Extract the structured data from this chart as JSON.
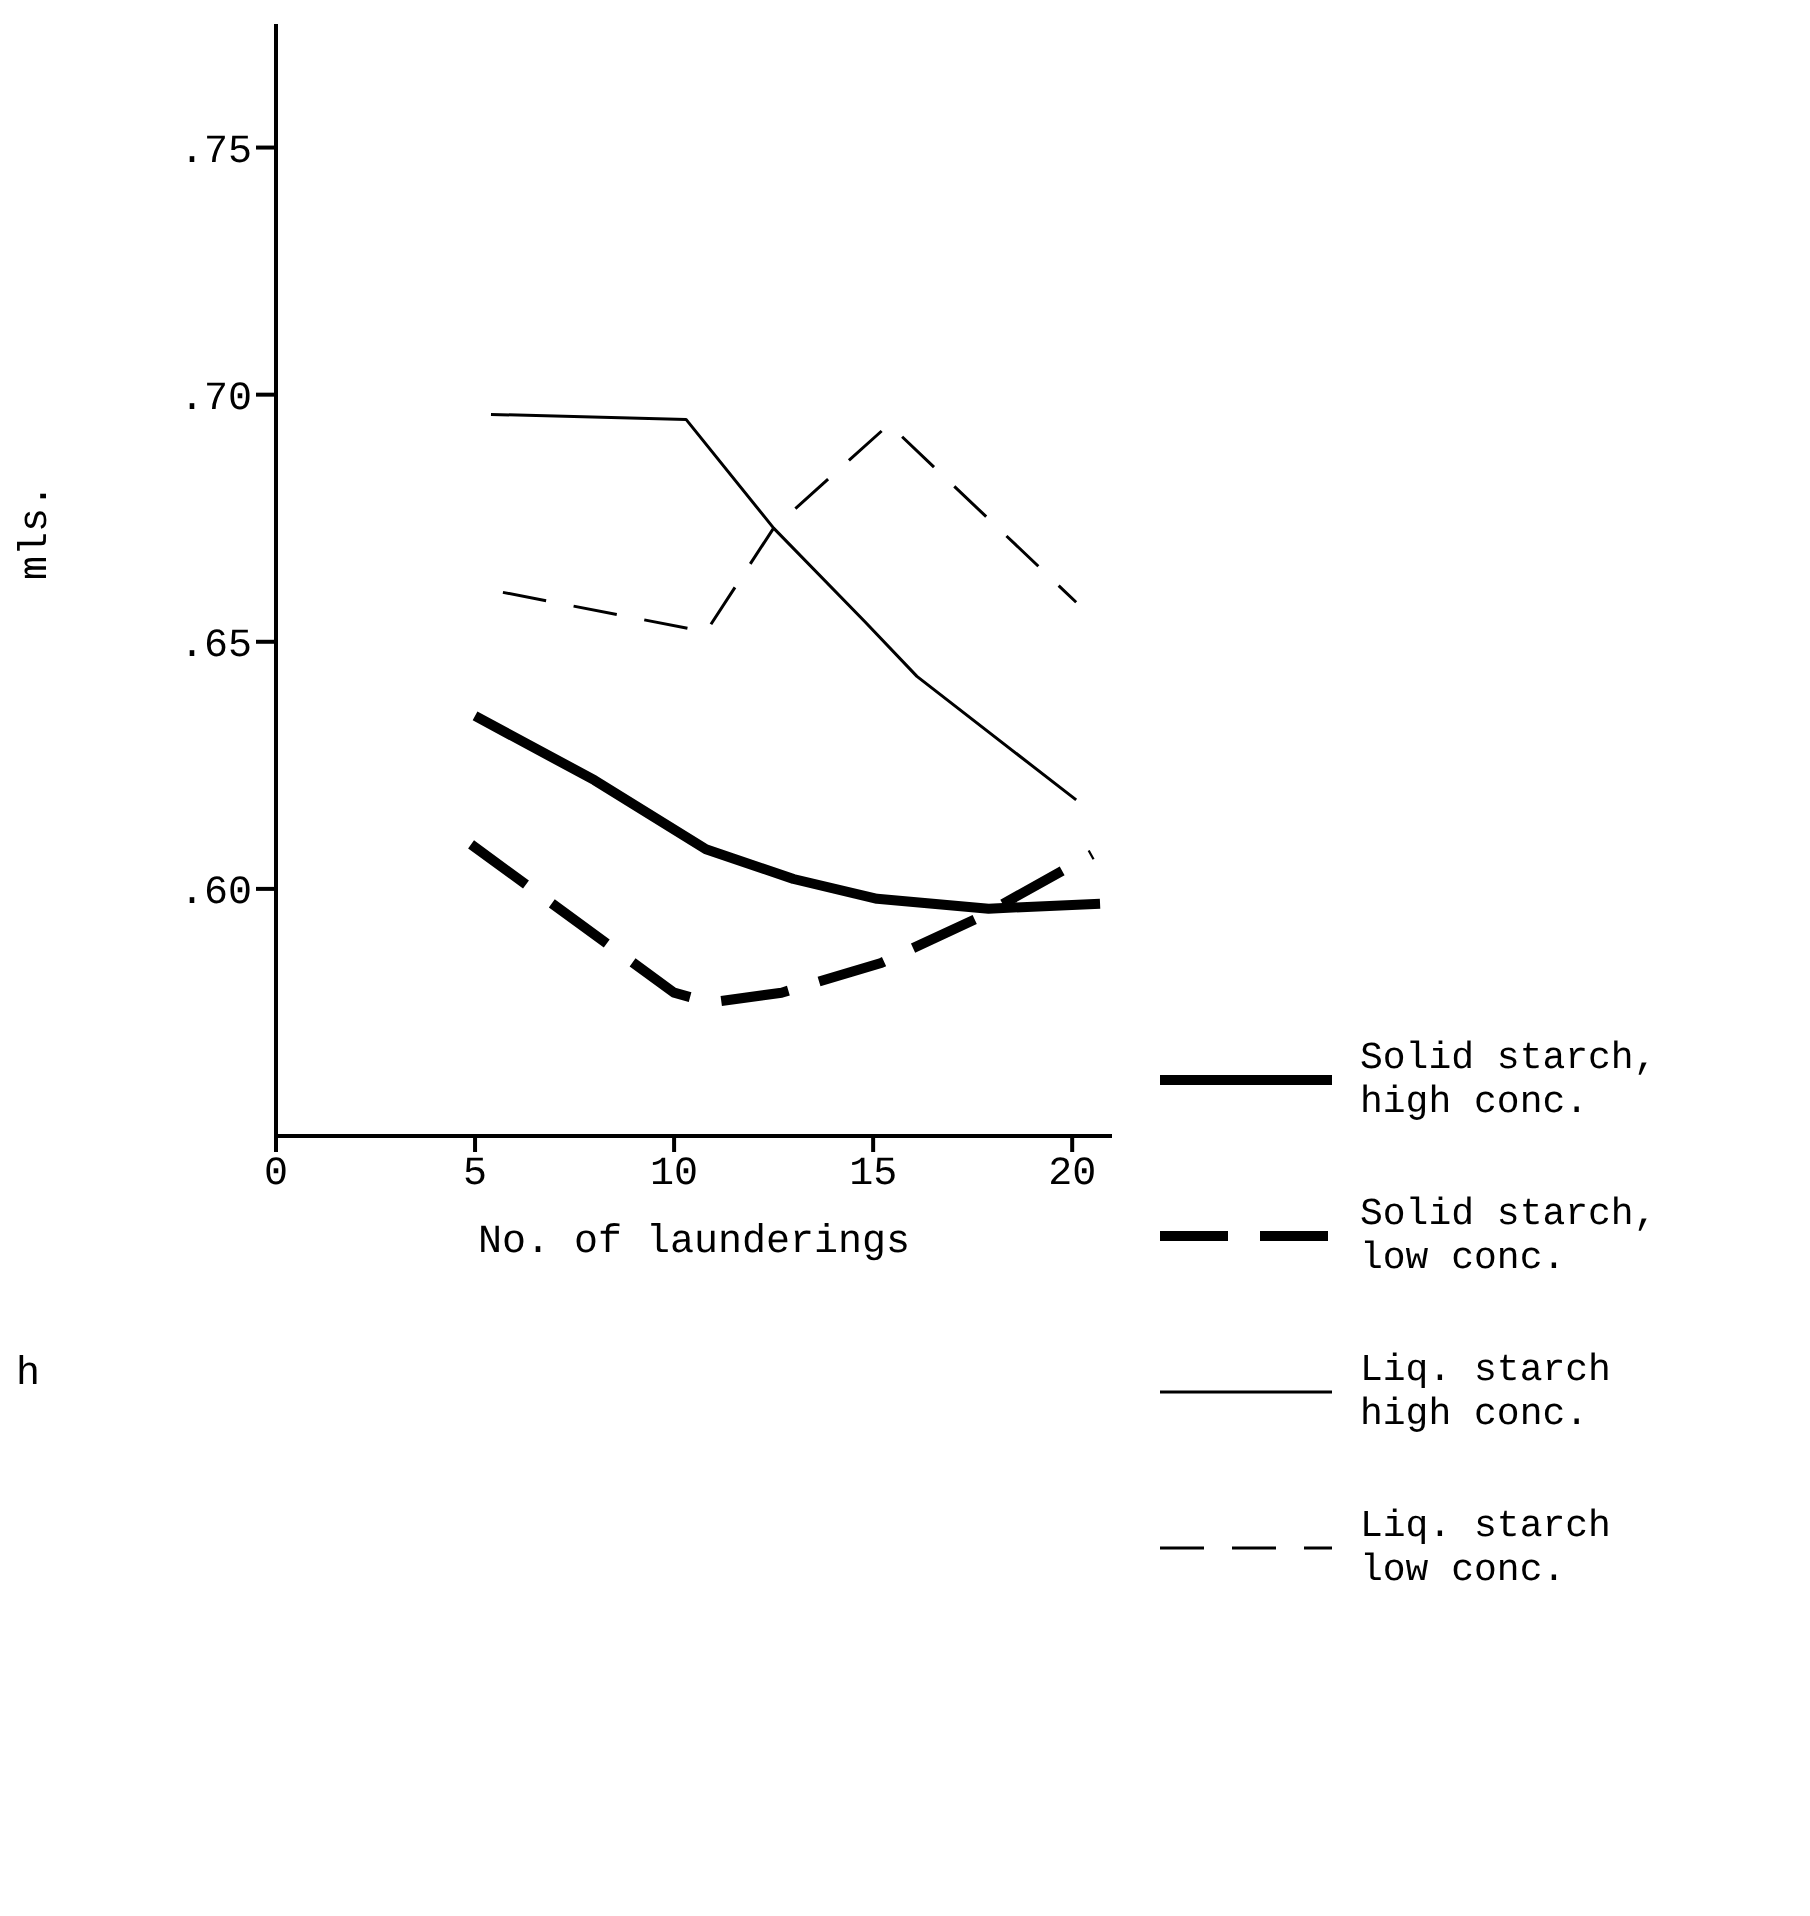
{
  "chart_data": {
    "type": "line",
    "xlabel": "No. of launderings",
    "ylabel": "mls.",
    "annotations": [
      "h"
    ],
    "xlim": [
      0,
      21
    ],
    "xticks": [
      0,
      5,
      10,
      15,
      20
    ],
    "ylim": [
      0.55,
      0.775
    ],
    "yticks": [
      {
        "value": 0.6,
        "label": ".60"
      },
      {
        "value": 0.65,
        "label": ".65"
      },
      {
        "value": 0.7,
        "label": ".70"
      },
      {
        "value": 0.75,
        "label": ".75"
      }
    ],
    "grid": false,
    "legend": "right",
    "marker": "none",
    "series": [
      {
        "name": "Solid starch, high conc.",
        "color": "#000000",
        "line_style": "solid",
        "x": [
          5.0,
          8.0,
          10.8,
          13.0,
          15.1,
          17.9,
          20.7
        ],
        "values": [
          0.635,
          0.622,
          0.608,
          0.602,
          0.598,
          0.596,
          0.597
        ]
      },
      {
        "name": "Solid starch, low conc.",
        "color": "#000000",
        "line_style": "dashed",
        "x": [
          4.9,
          10.0,
          10.9,
          12.7,
          15.2,
          17.6,
          20.5
        ],
        "values": [
          0.609,
          0.579,
          0.577,
          0.579,
          0.585,
          0.594,
          0.607
        ]
      },
      {
        "name": "Liq. starch high conc.",
        "color": "#000000",
        "line_style": "solid",
        "x": [
          5.4,
          10.3,
          12.5,
          14.8,
          16.1,
          20.1
        ],
        "values": [
          0.696,
          0.695,
          0.673,
          0.654,
          0.643,
          0.618
        ]
      },
      {
        "name": "Liq. starch low conc.",
        "color": "#000000",
        "line_style": "dashed",
        "x": [
          5.7,
          10.8,
          12.5,
          15.4,
          20.1
        ],
        "values": [
          0.66,
          0.652,
          0.673,
          0.694,
          0.658
        ]
      }
    ]
  }
}
